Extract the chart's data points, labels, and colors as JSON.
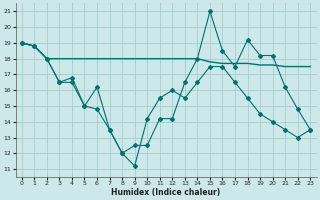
{
  "xlabel": "Humidex (Indice chaleur)",
  "bg_color": "#cce8ea",
  "grid_color": "#aacccc",
  "line_color": "#007070",
  "x_ticks": [
    0,
    1,
    2,
    3,
    4,
    5,
    6,
    7,
    8,
    9,
    10,
    11,
    12,
    13,
    14,
    15,
    16,
    17,
    18,
    19,
    20,
    21,
    22,
    23
  ],
  "y_ticks": [
    11,
    12,
    13,
    14,
    15,
    16,
    17,
    18,
    19,
    20,
    21
  ],
  "xlim": [
    -0.5,
    23.5
  ],
  "ylim": [
    10.5,
    21.5
  ],
  "series1_x": [
    0,
    1,
    2,
    3,
    4,
    5,
    6,
    7,
    8,
    9,
    10,
    11,
    12,
    13,
    14,
    15,
    16,
    17,
    18,
    19,
    20,
    21,
    22,
    23
  ],
  "series1_y": [
    19.0,
    18.8,
    18.0,
    18.0,
    18.0,
    18.0,
    18.0,
    18.0,
    18.0,
    18.0,
    18.0,
    18.0,
    18.0,
    18.0,
    18.0,
    17.8,
    17.7,
    17.7,
    17.7,
    17.6,
    17.6,
    17.5,
    17.5,
    17.5
  ],
  "series2_x": [
    0,
    1,
    2,
    3,
    4,
    5,
    6,
    7,
    8,
    9,
    10,
    11,
    12,
    13,
    14,
    15,
    16,
    17,
    18,
    19,
    20,
    21,
    22,
    23
  ],
  "series2_y": [
    19.0,
    18.8,
    18.0,
    16.5,
    16.8,
    15.0,
    14.8,
    13.5,
    12.0,
    12.5,
    12.5,
    14.2,
    14.2,
    16.5,
    18.0,
    21.0,
    18.5,
    17.5,
    19.2,
    18.2,
    18.2,
    16.2,
    14.8,
    13.5
  ],
  "series3_x": [
    0,
    1,
    2,
    3,
    4,
    5,
    6,
    7,
    8,
    9,
    10,
    11,
    12,
    13,
    14,
    15,
    16,
    17,
    18,
    19,
    20,
    21,
    22,
    23
  ],
  "series3_y": [
    19.0,
    18.8,
    18.0,
    16.5,
    16.5,
    15.0,
    16.2,
    13.5,
    12.0,
    11.2,
    14.2,
    15.5,
    16.0,
    15.5,
    16.5,
    17.5,
    17.5,
    16.5,
    15.5,
    14.5,
    14.0,
    13.5,
    13.0,
    13.5
  ]
}
